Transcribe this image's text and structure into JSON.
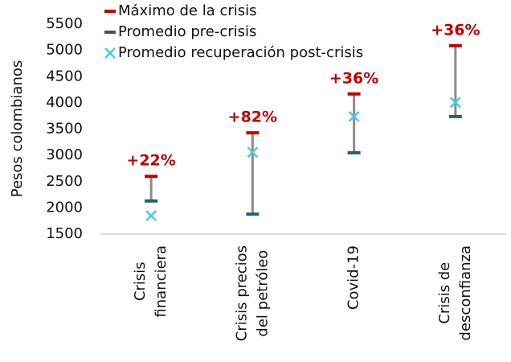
{
  "chart_data": {
    "type": "range-dot",
    "y_axis_label": "Pesos colombianos",
    "categories": [
      [
        "Crisis",
        "financiera"
      ],
      [
        "Crisis precios",
        "del petróleo"
      ],
      [
        "Covid-19"
      ],
      [
        "Crisis de",
        "desconfianza"
      ]
    ],
    "series": [
      {
        "name": "Máximo de la crisis",
        "color": "#c00000",
        "marker": "dash",
        "values": [
          2600,
          3430,
          4170,
          5090
        ]
      },
      {
        "name": "Promedio pre-crisis",
        "color": "#2e5e6a",
        "marker": "dash",
        "values": [
          2130,
          1880,
          3050,
          3740
        ]
      },
      {
        "name": "Promedio recuperación post-crisis",
        "color": "#4cc6e8",
        "marker": "x",
        "values": [
          1850,
          3060,
          3740,
          4010
        ]
      }
    ],
    "change_labels": [
      "+22%",
      "+82%",
      "+36%",
      "+36%"
    ],
    "range_color": "#8c8c8c",
    "ylim": [
      1500,
      5500
    ],
    "yticks": [
      1500,
      2000,
      2500,
      3000,
      3500,
      4000,
      4500,
      5000,
      5500
    ]
  }
}
